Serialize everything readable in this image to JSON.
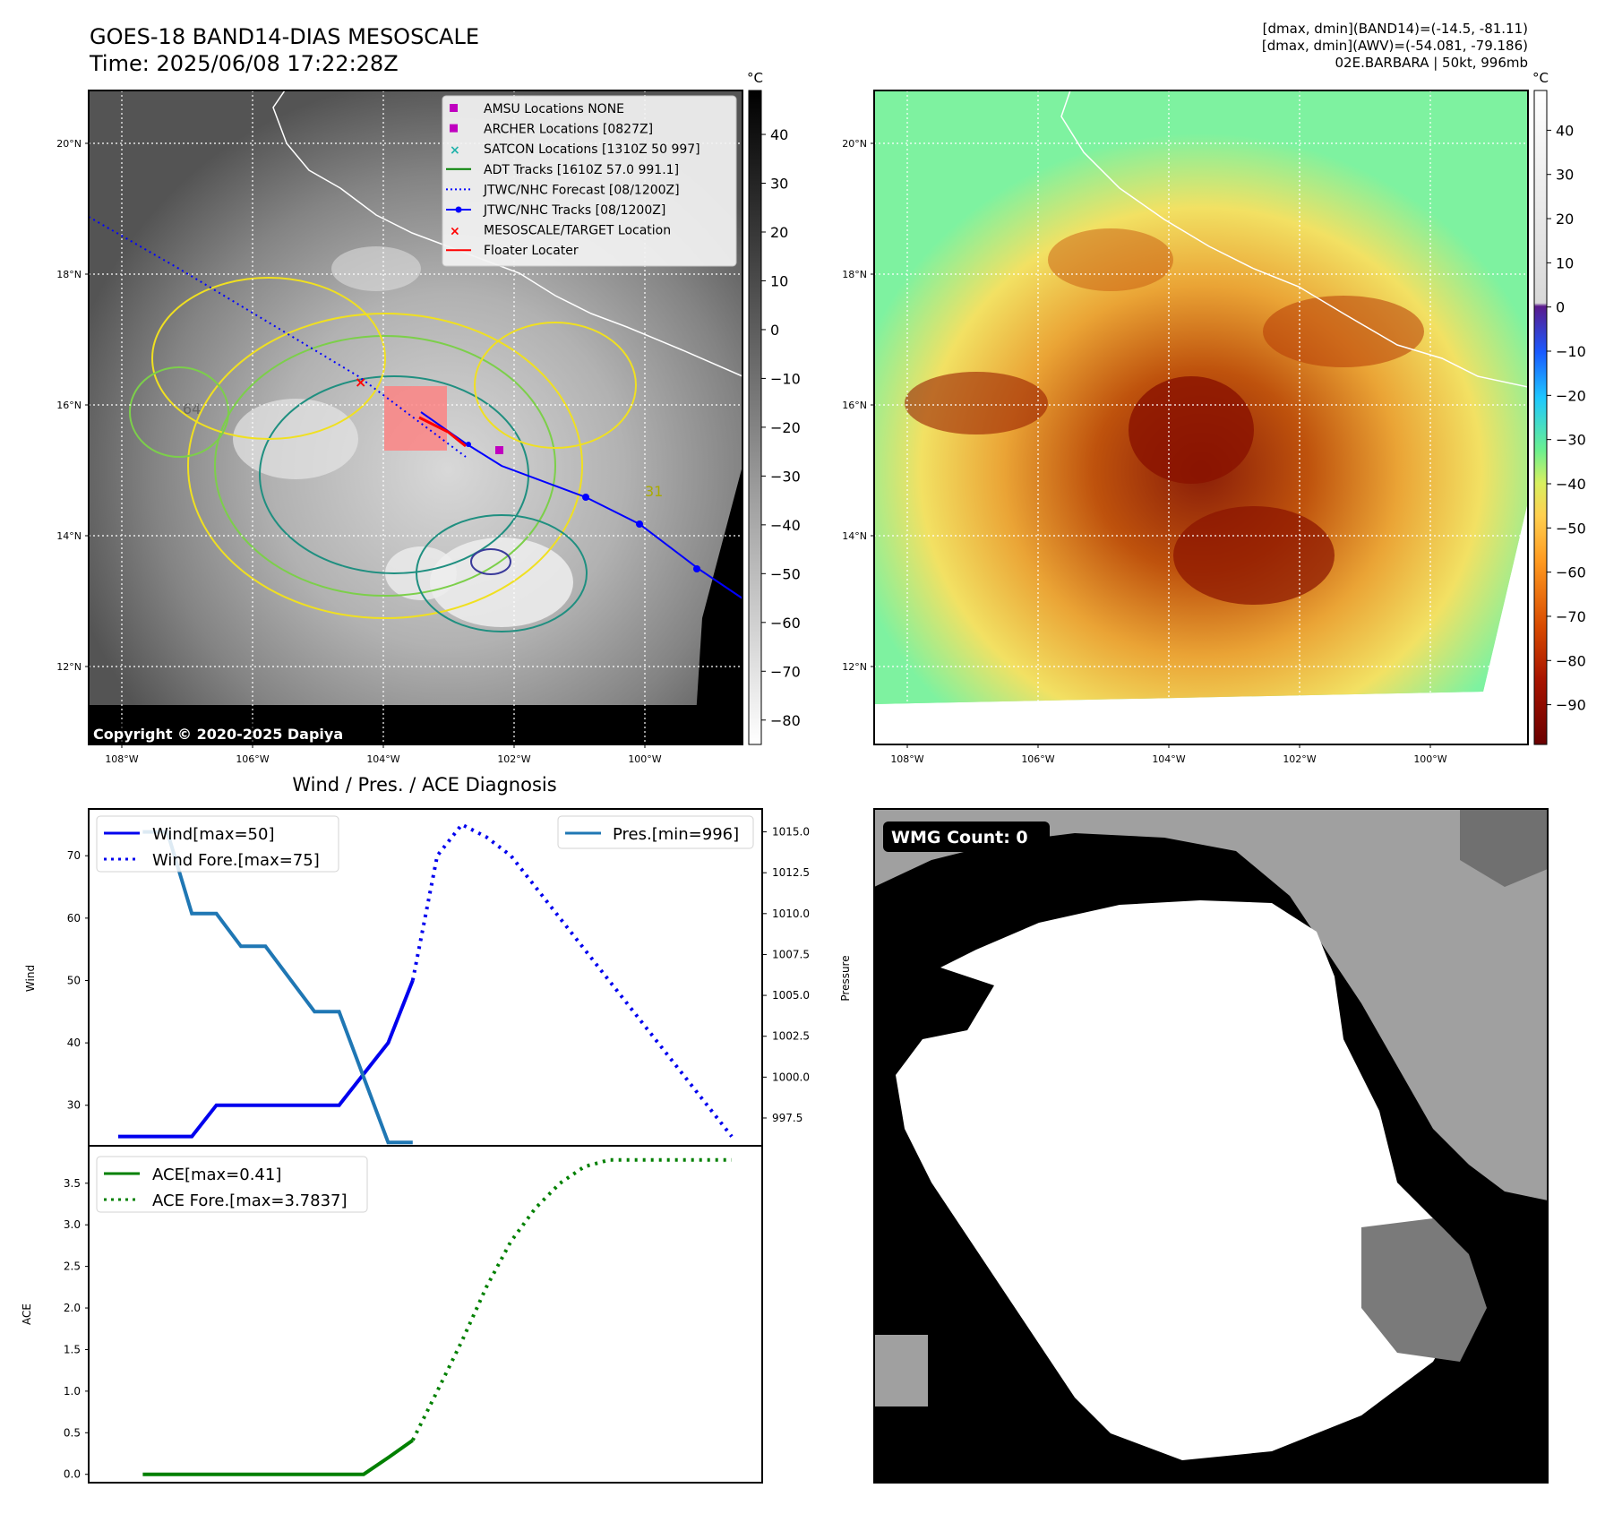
{
  "header": {
    "title": "GOES-18 BAND14-DIAS MESOSCALE",
    "time": "Time: 2025/06/08 17:22:28Z",
    "info1": "[dmax, dmin](BAND14)=(-14.5, -81.11)",
    "info2": "[dmax, dmin](AWV)=(-54.081, -79.186)",
    "info3": "02E.BARBARA | 50kt, 996mb"
  },
  "maps": {
    "lat_labels": [
      "20°N",
      "18°N",
      "16°N",
      "14°N",
      "12°N"
    ],
    "lon_labels": [
      "108°W",
      "106°W",
      "104°W",
      "102°W",
      "100°W"
    ],
    "copyright": "Copyright © 2020-2025 Dapiya",
    "cbar_unit": "°C",
    "cbar1_ticks": [
      "40",
      "30",
      "20",
      "10",
      "0",
      "−10",
      "−20",
      "−30",
      "−40",
      "−50",
      "−60",
      "−70",
      "−80"
    ],
    "cbar2_ticks": [
      "40",
      "30",
      "20",
      "10",
      "0",
      "−10",
      "−20",
      "−30",
      "−40",
      "−50",
      "−60",
      "−70",
      "−80",
      "−90"
    ],
    "contour_labels": [
      "31",
      "64"
    ],
    "legend": [
      {
        "label": "AMSU Locations NONE",
        "kind": "square",
        "color": "#c000c0"
      },
      {
        "label": "ARCHER Locations [0827Z]",
        "kind": "square",
        "color": "#c000c0"
      },
      {
        "label": "SATCON Locations [1310Z 50 997]",
        "kind": "x",
        "color": "#20b2aa"
      },
      {
        "label": "ADT Tracks [1610Z 57.0 991.1]",
        "kind": "line",
        "color": "#008000"
      },
      {
        "label": "JTWC/NHC Forecast [08/1200Z]",
        "kind": "dotted",
        "color": "#0000ff"
      },
      {
        "label": "JTWC/NHC Tracks [08/1200Z]",
        "kind": "linemarker",
        "color": "#0000ff"
      },
      {
        "label": "MESOSCALE/TARGET Location",
        "kind": "x",
        "color": "#ff0000"
      },
      {
        "label": "Floater Locater",
        "kind": "line",
        "color": "#ff0000"
      }
    ],
    "wmg": "WMG Count: 0"
  },
  "chart_data": [
    {
      "type": "line",
      "title": "Wind / Pres. / ACE Diagnosis",
      "xlabel": "",
      "ylabel": "Wind",
      "ylabel_right": "Pressure",
      "x": [
        0,
        1,
        2,
        3,
        4,
        5,
        6,
        7,
        8,
        9,
        10,
        11,
        12,
        13,
        14,
        15,
        16,
        17,
        18,
        19,
        20,
        21,
        22,
        23,
        24,
        25
      ],
      "ylim": [
        23.5,
        77.5
      ],
      "yticks": [
        30,
        40,
        50,
        60,
        70
      ],
      "y2lim": [
        995.8,
        1016.4
      ],
      "y2ticks": [
        997.5,
        1000.0,
        1002.5,
        1005.0,
        1007.5,
        1010.0,
        1012.5,
        1015.0
      ],
      "y2tick_labels": [
        "997.5",
        "1000.0",
        "1002.5",
        "1005.0",
        "1007.5",
        "1010.0",
        "1012.5",
        "1015.0"
      ],
      "legend_left": [
        "Wind[max=50]",
        "Wind Fore.[max=75]"
      ],
      "legend_right": [
        "Pres.[min=996]"
      ],
      "series": [
        {
          "name": "Wind[max=50]",
          "axis": "left",
          "color": "#0000ee",
          "style": "solid",
          "x": [
            0,
            2,
            3,
            4,
            5,
            6,
            7,
            8,
            9,
            10,
            11,
            12
          ],
          "values": [
            25,
            25,
            25,
            30,
            30,
            30,
            30,
            30,
            30,
            35,
            40,
            50
          ]
        },
        {
          "name": "Wind Fore.[max=75]",
          "axis": "left",
          "color": "#0000ee",
          "style": "dotted",
          "x": [
            12,
            13,
            14,
            15,
            16,
            17,
            18,
            19,
            20,
            21,
            22,
            23,
            24,
            25
          ],
          "values": [
            50,
            70,
            75,
            73,
            70,
            65,
            60,
            55,
            50,
            45,
            40,
            35,
            30,
            25
          ]
        },
        {
          "name": "Pres.[min=996]",
          "axis": "right",
          "color": "#1f77b4",
          "style": "solid",
          "x": [
            1,
            2,
            3,
            4,
            5,
            6,
            7,
            8,
            9,
            10,
            11,
            12
          ],
          "values": [
            1015,
            1015,
            1010,
            1010,
            1008,
            1008,
            1006,
            1004,
            1004,
            1000,
            996,
            996
          ]
        }
      ]
    },
    {
      "type": "line",
      "title": "",
      "xlabel": "",
      "ylabel": "ACE",
      "x": [
        0,
        1,
        2,
        3,
        4,
        5,
        6,
        7,
        8,
        9,
        10,
        11,
        12,
        13,
        14,
        15,
        16,
        17,
        18,
        19,
        20,
        21,
        22,
        23,
        24,
        25
      ],
      "ylim": [
        -0.1,
        3.95
      ],
      "yticks": [
        0.0,
        0.5,
        1.0,
        1.5,
        2.0,
        2.5,
        3.0,
        3.5
      ],
      "ytick_labels": [
        "0.0",
        "0.5",
        "1.0",
        "1.5",
        "2.0",
        "2.5",
        "3.0",
        "3.5"
      ],
      "legend": [
        "ACE[max=0.41]",
        "ACE Fore.[max=3.7837]"
      ],
      "series": [
        {
          "name": "ACE[max=0.41]",
          "color": "#008000",
          "style": "solid",
          "x": [
            1,
            2,
            3,
            4,
            5,
            6,
            7,
            8,
            9,
            10,
            11,
            12
          ],
          "values": [
            0,
            0,
            0,
            0,
            0,
            0,
            0,
            0,
            0,
            0,
            0.2,
            0.41
          ]
        },
        {
          "name": "ACE Fore.[max=3.7837]",
          "color": "#008000",
          "style": "dotted",
          "x": [
            12,
            13,
            14,
            15,
            16,
            17,
            18,
            19,
            20,
            21,
            22,
            23,
            24,
            25
          ],
          "values": [
            0.41,
            1.0,
            1.6,
            2.25,
            2.8,
            3.2,
            3.5,
            3.7,
            3.78,
            3.78,
            3.78,
            3.78,
            3.78,
            3.78
          ]
        }
      ]
    }
  ]
}
